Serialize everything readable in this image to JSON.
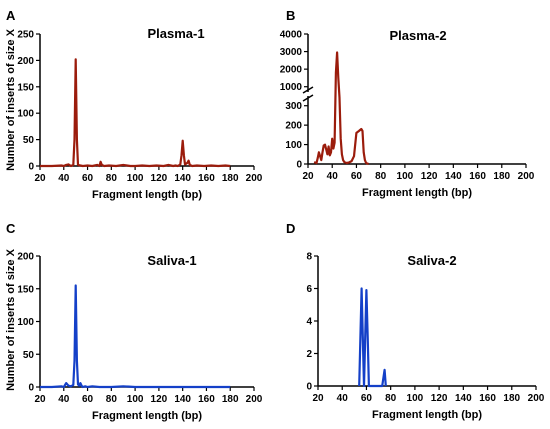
{
  "ylabel": "Number of inserts of  size X",
  "chart_data": [
    {
      "type": "line",
      "letter": "A",
      "title": "Plasma-1",
      "xlabel": "Fragment length (bp)",
      "xlim": [
        20,
        200
      ],
      "xticks": [
        20,
        40,
        60,
        80,
        100,
        120,
        140,
        160,
        180,
        200
      ],
      "ylim": [
        0,
        250
      ],
      "yticks": [
        0,
        50,
        100,
        150,
        200,
        250
      ],
      "color": "#9b1c0c",
      "series": [
        {
          "x": [
            20,
            30,
            38,
            40,
            42,
            44,
            46,
            48,
            49,
            50,
            51,
            52,
            54,
            56,
            60,
            64,
            68,
            70,
            71,
            72,
            74,
            78,
            84,
            90,
            96,
            100,
            106,
            112,
            118,
            124,
            128,
            132,
            134,
            136,
            138,
            139,
            140,
            141,
            142,
            144,
            145,
            146,
            148,
            152,
            158,
            164,
            170,
            176,
            180
          ],
          "y": [
            0,
            0,
            1,
            0,
            2,
            3,
            0,
            2,
            50,
            202,
            50,
            2,
            1,
            0,
            1,
            0,
            2,
            0,
            8,
            2,
            0,
            1,
            0,
            2,
            0,
            0,
            1,
            0,
            1,
            0,
            2,
            0,
            1,
            0,
            3,
            20,
            48,
            20,
            3,
            6,
            10,
            2,
            0,
            1,
            0,
            1,
            0,
            1,
            0
          ]
        }
      ]
    },
    {
      "type": "line",
      "letter": "B",
      "title": "Plasma-2",
      "xlabel": "Fragment length (bp)",
      "xlim": [
        20,
        200
      ],
      "xticks": [
        20,
        40,
        60,
        80,
        100,
        120,
        140,
        160,
        180,
        200
      ],
      "yscale": "broken",
      "ybreak": [
        350,
        700
      ],
      "ylim": [
        0,
        4000
      ],
      "yticks": [
        0,
        100,
        200,
        300,
        1000,
        2000,
        3000,
        4000
      ],
      "color": "#9b1c0c",
      "series": [
        {
          "x": [
            25,
            27,
            28,
            29,
            30,
            31,
            32,
            33,
            34,
            35,
            36,
            37,
            38,
            39,
            40,
            41,
            42,
            43,
            44,
            45,
            46,
            47,
            48,
            49,
            50,
            52,
            54,
            56,
            58,
            60,
            62,
            63,
            64,
            65,
            66,
            67,
            68,
            70
          ],
          "y": [
            10,
            5,
            30,
            60,
            40,
            20,
            60,
            95,
            100,
            75,
            50,
            90,
            45,
            60,
            130,
            80,
            110,
            1800,
            2950,
            1500,
            380,
            130,
            50,
            20,
            10,
            5,
            8,
            15,
            40,
            160,
            170,
            175,
            180,
            170,
            60,
            20,
            5,
            0
          ]
        }
      ]
    },
    {
      "type": "line",
      "letter": "C",
      "title": "Saliva-1",
      "xlabel": "Fragment length (bp)",
      "xlim": [
        20,
        200
      ],
      "xticks": [
        20,
        40,
        60,
        80,
        100,
        120,
        140,
        160,
        180,
        200
      ],
      "ylim": [
        0,
        200
      ],
      "yticks": [
        0,
        50,
        100,
        150,
        200
      ],
      "color": "#1440c8",
      "series": [
        {
          "x": [
            20,
            30,
            38,
            40,
            42,
            44,
            46,
            48,
            49,
            50,
            51,
            52,
            53,
            54,
            55,
            56,
            58,
            60,
            64,
            70,
            80,
            90,
            100,
            120,
            140,
            160,
            180
          ],
          "y": [
            0,
            0,
            1,
            0,
            6,
            2,
            1,
            3,
            40,
            155,
            40,
            4,
            2,
            6,
            2,
            0,
            1,
            0,
            1,
            0,
            0,
            1,
            0,
            0,
            0,
            0,
            0
          ]
        }
      ]
    },
    {
      "type": "line",
      "letter": "D",
      "title": "Saliva-2",
      "xlabel": "Fragment length (bp)",
      "xlim": [
        20,
        200
      ],
      "xticks": [
        20,
        40,
        60,
        80,
        100,
        120,
        140,
        160,
        180,
        200
      ],
      "ylim": [
        0,
        8
      ],
      "yticks": [
        0,
        2,
        4,
        6,
        8
      ],
      "color": "#1440c8",
      "series": [
        {
          "x": [
            54,
            55,
            56,
            57,
            58,
            59,
            60,
            61,
            62,
            70,
            73,
            74,
            75,
            76
          ],
          "y": [
            0,
            3,
            6,
            3,
            0,
            3,
            5.9,
            3,
            0,
            0,
            0,
            0.5,
            1,
            0
          ]
        }
      ]
    }
  ]
}
